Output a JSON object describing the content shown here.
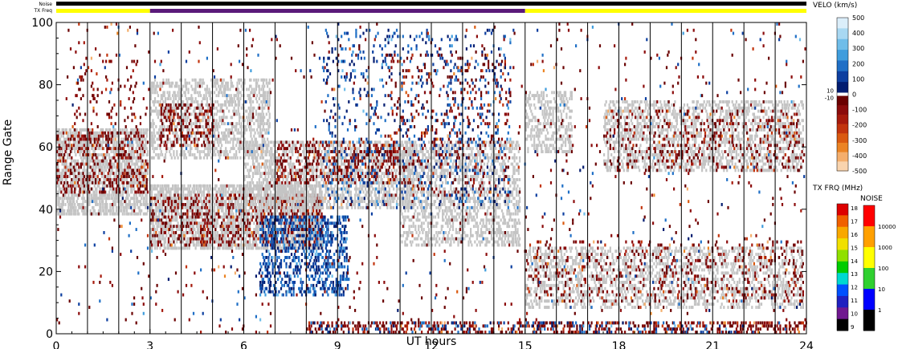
{
  "chart_data": {
    "type": "scatter",
    "xlabel": "UT hours",
    "ylabel": "Range Gate",
    "xlim": [
      0,
      24
    ],
    "ylim": [
      0,
      100
    ],
    "x_ticks": [
      0,
      3,
      6,
      9,
      12,
      15,
      18,
      21,
      24
    ],
    "x_tick_labels": [
      "0",
      "3",
      "6",
      "9",
      "12",
      "15",
      "18",
      "21",
      "24"
    ],
    "y_ticks": [
      0,
      20,
      40,
      60,
      80,
      100
    ],
    "y_tick_labels": [
      "0",
      "20",
      "40",
      "60",
      "80",
      "100"
    ],
    "scan_boundaries_hours": [
      1,
      2,
      3,
      4,
      5,
      6,
      7,
      8,
      9,
      10,
      11,
      12,
      13,
      14,
      15,
      16,
      17,
      18,
      19,
      20,
      21,
      22,
      23
    ],
    "top_bars": {
      "noise_label": "Noise",
      "txfreq_label": "TX Freq",
      "noise_color": "#000000",
      "txfreq_segments": [
        {
          "start": 0,
          "end": 3,
          "color": "#ffff00"
        },
        {
          "start": 3,
          "end": 15,
          "color": "#5a1a7a"
        },
        {
          "start": 15,
          "end": 24,
          "color": "#ffff00"
        }
      ]
    },
    "velocity_scale": {
      "title": "VELO (km/s)",
      "tick_labels": [
        "500",
        "400",
        "300",
        "200",
        "100",
        "0",
        "-100",
        "-200",
        "-300",
        "-400",
        "-500"
      ],
      "gap_labels": [
        "10",
        "-10"
      ],
      "colors_positive": [
        "#dbeefa",
        "#a8d8f2",
        "#6fbde9",
        "#3f9ddd",
        "#1f6fc6",
        "#0d3fa0",
        "#021c70"
      ],
      "colors_negative": [
        "#6a0000",
        "#8b0b0b",
        "#a61a0c",
        "#c2340d",
        "#da5a10",
        "#eb8424",
        "#f4ae6c",
        "#f9d4ae"
      ],
      "ground_scatter_color": "#c4c4c4"
    },
    "txfreq_scale": {
      "title": "TX FRQ (MHz)",
      "tick_labels": [
        "18",
        "17",
        "16",
        "15",
        "14",
        "13",
        "12",
        "11",
        "10",
        "9"
      ],
      "colors": [
        "#dd0000",
        "#f06000",
        "#f8a800",
        "#f0e000",
        "#90e000",
        "#00cc00",
        "#00d8d0",
        "#0050ff",
        "#2020c0",
        "#701890",
        "#000000"
      ]
    },
    "noise_scale": {
      "title": "NOISE",
      "tick_labels": [
        "10000",
        "1000",
        "100",
        "10",
        "1"
      ],
      "colors": [
        "#ff0000",
        "#ffa000",
        "#ffff00",
        "#30d030",
        "#0000ff",
        "#000000"
      ]
    },
    "echo_regions": [
      {
        "kind": "ground",
        "t0": 0.0,
        "t1": 2.9,
        "g0": 38,
        "g1": 66,
        "density": 0.55
      },
      {
        "kind": "neg",
        "t0": 0.0,
        "t1": 2.9,
        "g0": 45,
        "g1": 65,
        "density": 0.18
      },
      {
        "kind": "neg",
        "t0": 0.5,
        "t1": 2.6,
        "g0": 62,
        "g1": 90,
        "density": 0.05
      },
      {
        "kind": "ground",
        "t0": 3.0,
        "t1": 8.5,
        "g0": 27,
        "g1": 48,
        "density": 0.55
      },
      {
        "kind": "neg",
        "t0": 3.0,
        "t1": 8.5,
        "g0": 28,
        "g1": 45,
        "density": 0.18
      },
      {
        "kind": "ground",
        "t0": 3.0,
        "t1": 6.8,
        "g0": 56,
        "g1": 82,
        "density": 0.35
      },
      {
        "kind": "neg",
        "t0": 3.3,
        "t1": 5.0,
        "g0": 60,
        "g1": 74,
        "density": 0.25
      },
      {
        "kind": "ground",
        "t0": 6.0,
        "t1": 11.5,
        "g0": 40,
        "g1": 62,
        "density": 0.4
      },
      {
        "kind": "neg",
        "t0": 7.0,
        "t1": 10.8,
        "g0": 48,
        "g1": 62,
        "density": 0.2
      },
      {
        "kind": "pos",
        "t0": 6.5,
        "t1": 9.3,
        "g0": 12,
        "g1": 38,
        "density": 0.3
      },
      {
        "kind": "ground",
        "t0": 11.0,
        "t1": 14.8,
        "g0": 28,
        "g1": 62,
        "density": 0.35
      },
      {
        "kind": "pos",
        "t0": 8.5,
        "t1": 14.5,
        "g0": 40,
        "g1": 98,
        "density": 0.06
      },
      {
        "kind": "neg",
        "t0": 10.5,
        "t1": 14.5,
        "g0": 44,
        "g1": 90,
        "density": 0.06
      },
      {
        "kind": "ground",
        "t0": 15.0,
        "t1": 23.9,
        "g0": 8,
        "g1": 28,
        "density": 0.3
      },
      {
        "kind": "neg",
        "t0": 15.0,
        "t1": 23.9,
        "g0": 10,
        "g1": 30,
        "density": 0.08
      },
      {
        "kind": "ground",
        "t0": 15.0,
        "t1": 16.5,
        "g0": 58,
        "g1": 78,
        "density": 0.35
      },
      {
        "kind": "ground",
        "t0": 17.5,
        "t1": 23.9,
        "g0": 52,
        "g1": 75,
        "density": 0.35
      },
      {
        "kind": "neg",
        "t0": 17.5,
        "t1": 23.9,
        "g0": 52,
        "g1": 72,
        "density": 0.1
      },
      {
        "kind": "neg",
        "t0": 8.0,
        "t1": 24.0,
        "g0": 0,
        "g1": 4,
        "density": 0.25
      },
      {
        "kind": "pos",
        "t0": 8.0,
        "t1": 22.0,
        "g0": 0,
        "g1": 4,
        "density": 0.08
      },
      {
        "kind": "pos",
        "t0": 0.0,
        "t1": 24.0,
        "g0": 0,
        "g1": 100,
        "density": 0.004
      },
      {
        "kind": "neg",
        "t0": 0.0,
        "t1": 24.0,
        "g0": 0,
        "g1": 100,
        "density": 0.012
      }
    ]
  }
}
